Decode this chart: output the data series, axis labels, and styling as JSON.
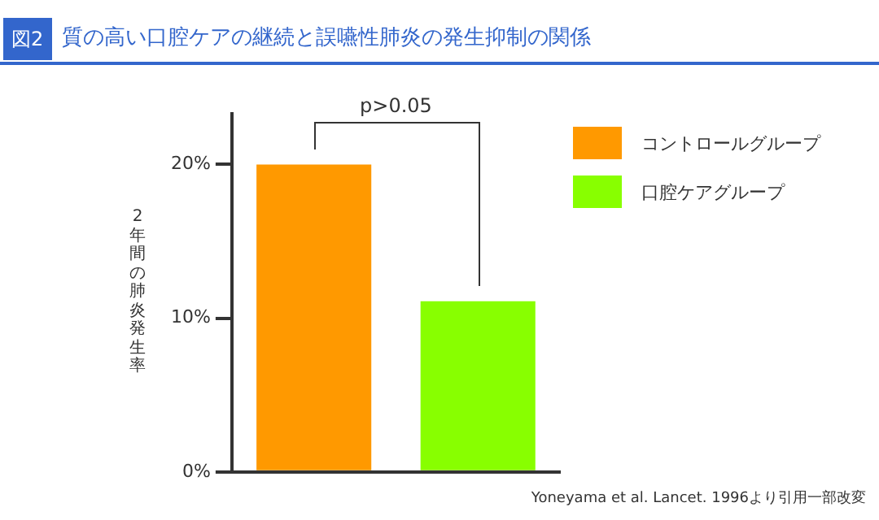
{
  "chart_data": {
    "type": "bar",
    "title": "質の高い口腔ケアの継続と誤嚥性肺炎の発生抑制の関係",
    "ylabel": "2年間の肺炎発生率",
    "annotations": [
      "図2",
      "p>0.05",
      "Yoneyama et al. Lancet. 1996より引用一部改変"
    ],
    "categories": [
      null,
      null
    ],
    "series": [
      {
        "name": "コントロールグループ",
        "color": "#ff9900",
        "values": [
          20,
          null
        ]
      },
      {
        "name": "口腔ケアグループ",
        "color": "#88ff00",
        "values": [
          null,
          11.1
        ]
      }
    ],
    "ylim": [
      0,
      23.3
    ],
    "yticks": [
      {
        "value": 0,
        "label": "0%"
      },
      {
        "value": 10,
        "label": "10%"
      },
      {
        "value": 20,
        "label": "20%"
      }
    ],
    "grid": false,
    "legend": "right"
  }
}
